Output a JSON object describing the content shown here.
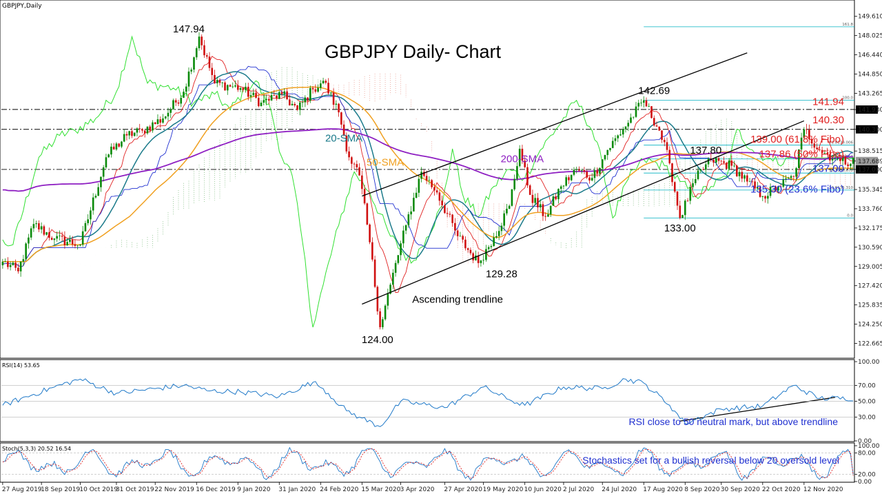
{
  "chart_data": {
    "type": "candlestick",
    "symbol_label": "GBPJPY,Daily",
    "title": "GBPJPY Daily- Chart",
    "price_axis": {
      "ylim": [
        121.5,
        150.9
      ],
      "ticks": [
        "149.610",
        "148.025",
        "146.440",
        "144.850",
        "143.265",
        "141.930",
        "140.300",
        "138.515",
        "137.689",
        "137.000",
        "135.345",
        "133.760",
        "132.175",
        "130.590",
        "129.005",
        "127.420",
        "125.835",
        "124.250",
        "122.665"
      ],
      "tick_values": [
        149.61,
        148.025,
        146.44,
        144.85,
        143.265,
        141.93,
        140.3,
        138.515,
        137.689,
        137.0,
        135.345,
        133.76,
        132.175,
        130.59,
        129.005,
        127.42,
        125.835,
        124.25,
        122.665
      ],
      "highlighted": [
        "141.930",
        "140.300",
        "137.689",
        "137.000"
      ]
    },
    "x_axis": {
      "bars": 330,
      "dates": [
        "27 Aug 2019",
        "18 Sep 2019",
        "10 Oct 2019",
        "31 Oct 2019",
        "22 Nov 2019",
        "16 Dec 2019",
        "9 Jan 2020",
        "31 Jan 2020",
        "24 Feb 2020",
        "15 Mar 2020",
        "3 Apr 2020",
        "27 Apr 2020",
        "19 May 2020",
        "10 Jun 2020",
        "2 Jul 2020",
        "24 Jul 2020",
        "17 Aug 2020",
        "8 Sep 2020",
        "30 Sep 2020",
        "22 Oct 2020",
        "12 Nov 2020"
      ],
      "date_bars": [
        0,
        15,
        30,
        44,
        59,
        75,
        91,
        107,
        123,
        139,
        154,
        171,
        186,
        202,
        217,
        232,
        248,
        264,
        278,
        294,
        310
      ]
    },
    "price_path": {
      "bars": [
        0,
        6,
        12,
        20,
        30,
        40,
        48,
        54,
        62,
        70,
        76,
        82,
        92,
        100,
        108,
        114,
        120,
        124,
        130,
        134,
        138,
        142,
        146,
        150,
        156,
        162,
        168,
        176,
        184,
        190,
        196,
        200,
        204,
        210,
        216,
        222,
        228,
        234,
        240,
        248,
        254,
        258,
        262,
        268,
        274,
        282,
        288,
        294,
        300,
        306,
        310,
        316,
        322,
        324
      ],
      "close": [
        129.4,
        128.6,
        132.5,
        131.3,
        130.8,
        138.0,
        139.8,
        140.2,
        141.2,
        143.4,
        147.94,
        144.1,
        143.7,
        142.5,
        143.2,
        141.9,
        143.6,
        144.3,
        141.7,
        138.0,
        136.5,
        131.0,
        124.0,
        127.5,
        132.4,
        136.8,
        135.1,
        131.5,
        129.28,
        131.4,
        134.0,
        138.7,
        134.9,
        133.1,
        135.6,
        137.0,
        136.3,
        138.6,
        140.3,
        142.69,
        140.2,
        137.5,
        133.0,
        136.2,
        137.8,
        137.3,
        136.0,
        134.8,
        135.6,
        136.4,
        140.3,
        138.6,
        137.9,
        137.689
      ]
    },
    "indicators": [
      {
        "name": "20-SMA",
        "color": "#1a7a8a"
      },
      {
        "name": "50-SMA",
        "color": "#f0a020"
      },
      {
        "name": "200-SMA",
        "color": "#8e1fc2"
      }
    ],
    "trendlines": [
      {
        "name": "upper channel",
        "points": [
          [
            139,
            134.8
          ],
          [
            288,
            146.6
          ]
        ]
      },
      {
        "name": "Ascending trendline",
        "points": [
          [
            139,
            125.9
          ],
          [
            310,
            141.0
          ]
        ]
      },
      {
        "name": "RSI trendline",
        "pane": "rsi",
        "points": [
          [
            262,
            25
          ],
          [
            322,
            55
          ]
        ]
      }
    ],
    "fibonacci": {
      "color": "#00b0c0",
      "levels": [
        {
          "label": "161.8",
          "price": 148.75
        },
        {
          "label": "100.0",
          "price": 142.69
        },
        {
          "label": "61.8139.006",
          "price": 139.0
        },
        {
          "label": "50.0137.860",
          "price": 137.86
        },
        {
          "label": "38.2136.670",
          "price": 136.7
        },
        {
          "label": "23.6135.310",
          "price": 135.3
        },
        {
          "label": "0.0",
          "price": 133.0
        }
      ]
    },
    "horizontal_levels": [
      141.94,
      140.3,
      137.0
    ],
    "annotations": [
      {
        "text": "147.94",
        "color": "#000000",
        "bar": 72,
        "price": 148.3
      },
      {
        "text": "124.00",
        "color": "#000000",
        "bar": 145,
        "price": 122.7
      },
      {
        "text": "129.28",
        "color": "#000000",
        "bar": 193,
        "price": 128.1
      },
      {
        "text": "Ascending trendline",
        "color": "#000000",
        "bar": 176,
        "price": 126.0
      },
      {
        "text": "142.69",
        "color": "#000000",
        "bar": 252,
        "price": 143.2
      },
      {
        "text": "137.80",
        "color": "#000000",
        "bar": 272,
        "price": 138.3
      },
      {
        "text": "133.00",
        "color": "#000000",
        "bar": 262,
        "price": 131.9
      },
      {
        "text": "141.94",
        "color": "#e02020",
        "bar": 342,
        "price": 142.3
      },
      {
        "text": "140.30",
        "color": "#e02020",
        "bar": 342,
        "price": 140.8
      },
      {
        "text": "139.00 (61.8% Fibo)",
        "color": "#e02020",
        "bar": 322,
        "price": 139.2
      },
      {
        "text": "137.86 (50% Fibo)",
        "color": "#e02020",
        "bar": 325,
        "price": 138.0
      },
      {
        "text": "137.00",
        "color": "#2030d0",
        "bar": 330,
        "price": 136.8
      },
      {
        "text": "135.30 (23.6% Fibo)",
        "color": "#2030d0",
        "bar": 321,
        "price": 135.1
      },
      {
        "text": "20-SMA",
        "color": "#1a7a8a",
        "bar": 132,
        "price": 139.3
      },
      {
        "text": "50-SMA",
        "color": "#f0a020",
        "bar": 148,
        "price": 137.3
      },
      {
        "text": "200-SMA",
        "color": "#8e1fc2",
        "bar": 201,
        "price": 137.6
      }
    ],
    "rsi": {
      "label": "RSI(14) 53.65",
      "ticks": [
        "100.00",
        "70.00",
        "50.00",
        "30.00",
        "0.00"
      ],
      "tick_values": [
        100,
        70,
        50,
        30,
        0
      ],
      "bars": [
        0,
        20,
        30,
        44,
        59,
        70,
        80,
        92,
        107,
        120,
        124,
        133,
        138,
        146,
        154,
        171,
        186,
        196,
        202,
        217,
        232,
        241,
        248,
        258,
        264,
        278,
        294,
        306,
        316
      ],
      "values": [
        45,
        68,
        78,
        60,
        66,
        70,
        63,
        62,
        56,
        74,
        66,
        38,
        30,
        18,
        50,
        42,
        68,
        52,
        45,
        68,
        66,
        78,
        73,
        45,
        22,
        40,
        44,
        70,
        53.65
      ],
      "annotation": {
        "text": "RSI close to 50 neutral mark, but above trendline",
        "color": "#2030d0"
      }
    },
    "stochastic": {
      "label": "Stoch(5,3,3) 20.52 16.54",
      "ticks": [
        "100.00",
        "80.00",
        "20.00",
        "0.00"
      ],
      "tick_values": [
        100,
        80,
        20,
        0
      ],
      "k_last": 20.52,
      "d_last": 16.54,
      "annotation": {
        "text": "Stochastics set for a bullish reversal below 20 oversold level",
        "color": "#2030d0"
      }
    }
  }
}
